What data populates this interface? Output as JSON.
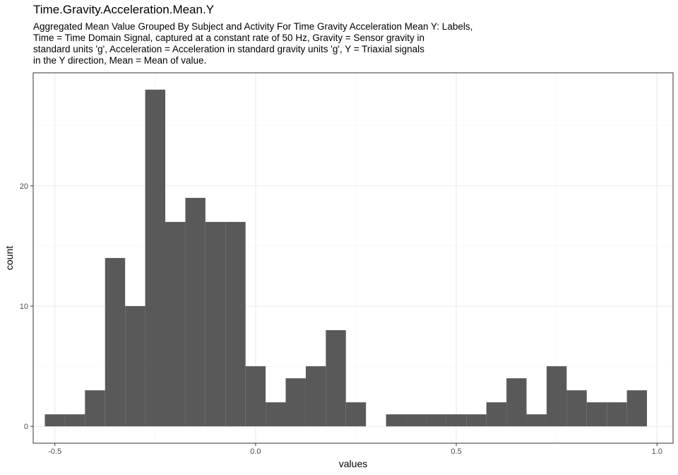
{
  "chart_data": {
    "type": "bar",
    "title": "Time.Gravity.Acceleration.Mean.Y",
    "subtitle_lines": [
      "Aggregated Mean Value Grouped By Subject and Activity For Time Gravity Acceleration Mean Y: Labels,",
      "Time = Time Domain Signal, captured at a constant rate of 50 Hz, Gravity = Sensor gravity in",
      "standard units 'g', Acceleration = Acceleration in standard gravity units 'g', Y = Triaxial signals",
      "in the Y direction, Mean = Mean of value."
    ],
    "xlabel": "values",
    "ylabel": "count",
    "xlim": [
      -0.554,
      1.04
    ],
    "ylim": [
      -1.4,
      29.4
    ],
    "x_ticks": [
      {
        "value": -0.5,
        "label": "-0.5"
      },
      {
        "value": 0.0,
        "label": "0.0"
      },
      {
        "value": 0.5,
        "label": "0.5"
      },
      {
        "value": 1.0,
        "label": "1.0"
      }
    ],
    "y_ticks": [
      {
        "value": 0,
        "label": "0"
      },
      {
        "value": 10,
        "label": "10"
      },
      {
        "value": 20,
        "label": "20"
      }
    ],
    "bin_width": 0.05,
    "bins": [
      {
        "x0": -0.525,
        "x1": -0.475,
        "count": 1
      },
      {
        "x0": -0.475,
        "x1": -0.425,
        "count": 1
      },
      {
        "x0": -0.425,
        "x1": -0.375,
        "count": 3
      },
      {
        "x0": -0.375,
        "x1": -0.325,
        "count": 14
      },
      {
        "x0": -0.325,
        "x1": -0.275,
        "count": 10
      },
      {
        "x0": -0.275,
        "x1": -0.225,
        "count": 28
      },
      {
        "x0": -0.225,
        "x1": -0.175,
        "count": 17
      },
      {
        "x0": -0.175,
        "x1": -0.125,
        "count": 19
      },
      {
        "x0": -0.125,
        "x1": -0.075,
        "count": 17
      },
      {
        "x0": -0.075,
        "x1": -0.025,
        "count": 17
      },
      {
        "x0": -0.025,
        "x1": 0.025,
        "count": 5
      },
      {
        "x0": 0.025,
        "x1": 0.075,
        "count": 2
      },
      {
        "x0": 0.075,
        "x1": 0.125,
        "count": 4
      },
      {
        "x0": 0.125,
        "x1": 0.175,
        "count": 5
      },
      {
        "x0": 0.175,
        "x1": 0.225,
        "count": 8
      },
      {
        "x0": 0.225,
        "x1": 0.275,
        "count": 2
      },
      {
        "x0": 0.275,
        "x1": 0.325,
        "count": 0
      },
      {
        "x0": 0.325,
        "x1": 0.375,
        "count": 1
      },
      {
        "x0": 0.375,
        "x1": 0.425,
        "count": 1
      },
      {
        "x0": 0.425,
        "x1": 0.475,
        "count": 1
      },
      {
        "x0": 0.475,
        "x1": 0.525,
        "count": 1
      },
      {
        "x0": 0.525,
        "x1": 0.575,
        "count": 1
      },
      {
        "x0": 0.575,
        "x1": 0.625,
        "count": 2
      },
      {
        "x0": 0.625,
        "x1": 0.675,
        "count": 4
      },
      {
        "x0": 0.675,
        "x1": 0.725,
        "count": 1
      },
      {
        "x0": 0.725,
        "x1": 0.775,
        "count": 5
      },
      {
        "x0": 0.775,
        "x1": 0.825,
        "count": 3
      },
      {
        "x0": 0.825,
        "x1": 0.875,
        "count": 2
      },
      {
        "x0": 0.875,
        "x1": 0.925,
        "count": 2
      },
      {
        "x0": 0.925,
        "x1": 0.975,
        "count": 3
      }
    ],
    "grid": true,
    "colors": {
      "bar": "#595959",
      "panel_background": "#ffffff",
      "panel_border": "#333333",
      "grid_major": "#ebebeb",
      "grid_minor": "#f5f5f5"
    }
  }
}
